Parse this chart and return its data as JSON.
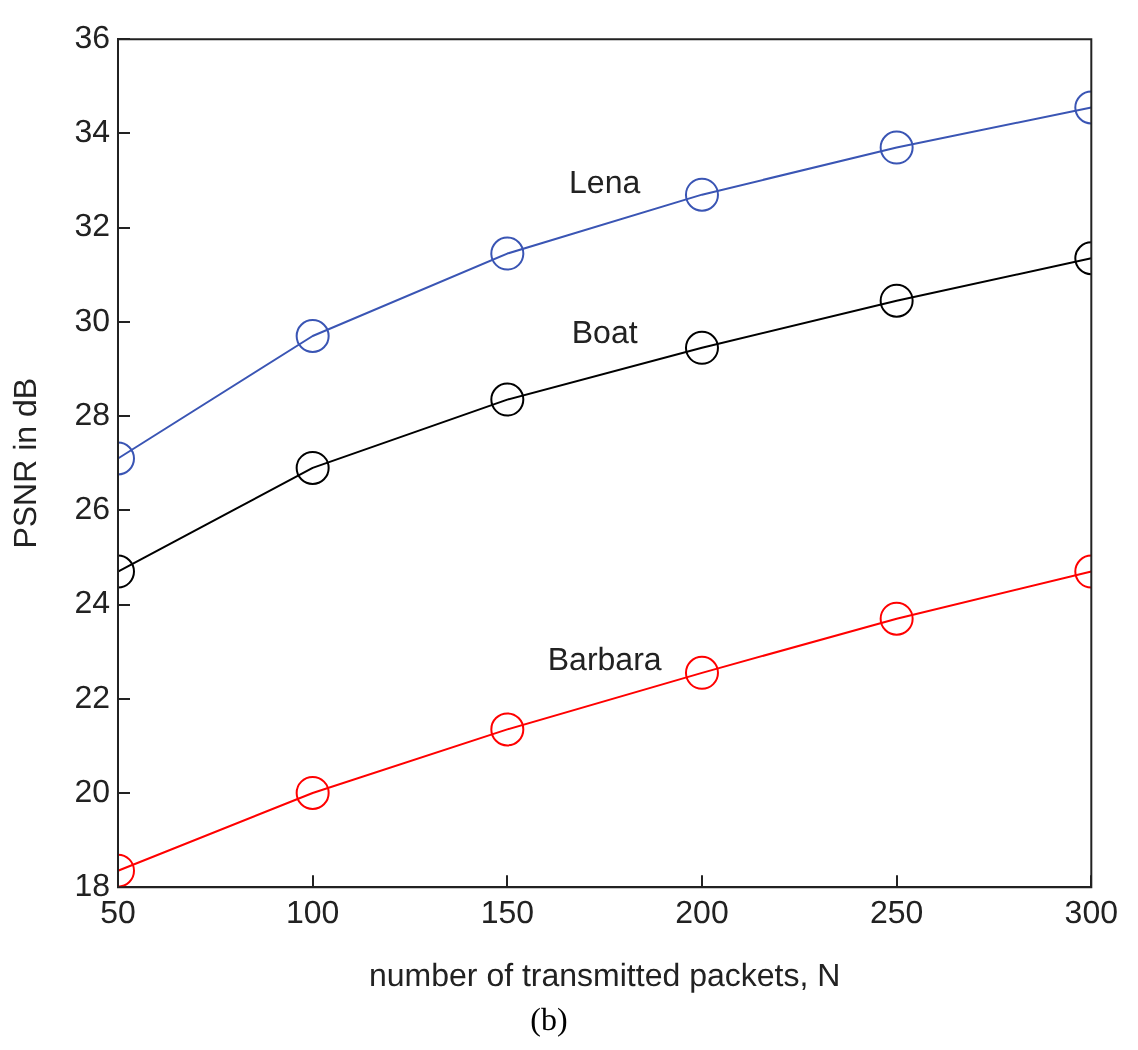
{
  "chart_data": {
    "type": "line",
    "xlabel": "number of transmitted packets, N",
    "ylabel": "PSNR in dB",
    "x": [
      50,
      100,
      150,
      200,
      250,
      300
    ],
    "series": [
      {
        "name": "Lena",
        "color": "#3a55b4",
        "values": [
          27.1,
          29.7,
          31.45,
          32.7,
          33.7,
          34.55
        ]
      },
      {
        "name": "Boat",
        "color": "#000000",
        "values": [
          24.7,
          26.9,
          28.35,
          29.45,
          30.45,
          31.35
        ]
      },
      {
        "name": "Barbara",
        "color": "#ff0000",
        "values": [
          18.35,
          20.0,
          21.35,
          22.55,
          23.7,
          24.7
        ]
      }
    ],
    "xlim": [
      50,
      300
    ],
    "xticks": [
      50,
      100,
      150,
      200,
      250,
      300
    ],
    "ylim": [
      18,
      36
    ],
    "yticks": [
      18,
      20,
      22,
      24,
      26,
      28,
      30,
      32,
      34,
      36
    ],
    "grid": false,
    "legend": false,
    "marker": "circle",
    "line_style": "solid",
    "annotations": [
      "(b)"
    ]
  }
}
